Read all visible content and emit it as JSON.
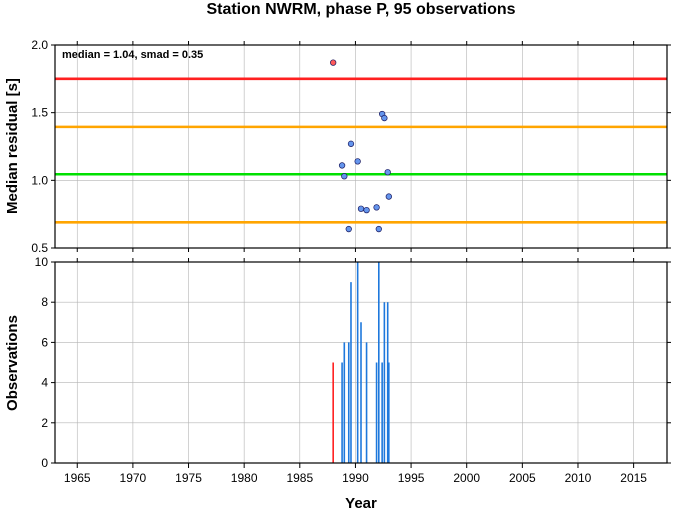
{
  "chart_data": [
    {
      "type": "scatter",
      "title": "Station NWRM, phase P, 95 observations",
      "annotation": "median = 1.04, smad = 0.35",
      "ylabel": "Median residual [s]",
      "xlim": [
        1963,
        2018
      ],
      "ylim": [
        0.5,
        2.0
      ],
      "yticks": [
        0.5,
        1.0,
        1.5,
        2.0
      ],
      "ytick_labels": [
        "0.5",
        "1.0",
        "1.5",
        "2.0"
      ],
      "grid": true,
      "reference_lines": [
        {
          "y": 1.75,
          "color": "#ff2020"
        },
        {
          "y": 1.395,
          "color": "#ffa500"
        },
        {
          "y": 1.045,
          "color": "#00e000"
        },
        {
          "y": 0.69,
          "color": "#ffa500"
        }
      ],
      "series": [
        {
          "color": "#ff5a5a",
          "points": [
            [
              1988.0,
              1.87
            ]
          ]
        },
        {
          "color": "#6495ed",
          "points": [
            [
              1988.8,
              1.11
            ],
            [
              1989.0,
              1.03
            ],
            [
              1989.4,
              0.64
            ],
            [
              1989.6,
              1.27
            ],
            [
              1990.2,
              1.14
            ],
            [
              1990.5,
              0.79
            ],
            [
              1991.0,
              0.78
            ],
            [
              1991.9,
              0.8
            ],
            [
              1992.1,
              0.64
            ],
            [
              1992.4,
              1.49
            ],
            [
              1992.6,
              1.46
            ],
            [
              1992.9,
              1.06
            ],
            [
              1993.0,
              0.88
            ]
          ]
        }
      ]
    },
    {
      "type": "bar",
      "ylabel": "Observations",
      "xlabel": "Year",
      "xlim": [
        1963,
        2018
      ],
      "ylim": [
        0,
        10
      ],
      "xticks": [
        1965,
        1970,
        1975,
        1980,
        1985,
        1990,
        1995,
        2000,
        2005,
        2010,
        2015
      ],
      "xtick_labels": [
        "1965",
        "1970",
        "1975",
        "1980",
        "1985",
        "1990",
        "1995",
        "2000",
        "2005",
        "2010",
        "2015"
      ],
      "yticks": [
        0,
        2,
        4,
        6,
        8,
        10
      ],
      "ytick_labels": [
        "0",
        "2",
        "4",
        "6",
        "8",
        "10"
      ],
      "grid": true,
      "series": [
        {
          "color": "#ff2020",
          "points": [
            [
              1988.0,
              5
            ]
          ]
        },
        {
          "color": "#1e78dc",
          "points": [
            [
              1988.8,
              5
            ],
            [
              1989.0,
              6
            ],
            [
              1989.4,
              6
            ],
            [
              1989.6,
              9
            ],
            [
              1990.2,
              10
            ],
            [
              1990.5,
              7
            ],
            [
              1991.0,
              6
            ],
            [
              1991.9,
              5
            ],
            [
              1992.1,
              10
            ],
            [
              1992.4,
              5
            ],
            [
              1992.6,
              8
            ],
            [
              1992.9,
              8
            ],
            [
              1993.0,
              5
            ]
          ]
        }
      ]
    }
  ]
}
